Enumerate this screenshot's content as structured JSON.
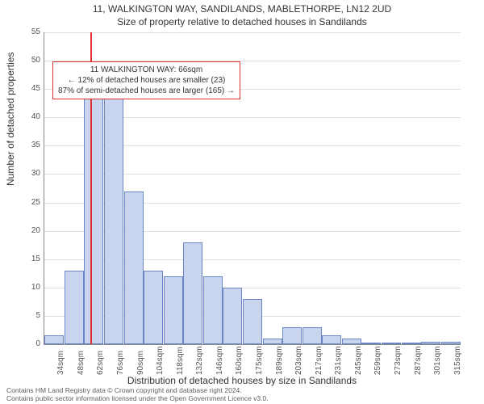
{
  "title_line1": "11, WALKINGTON WAY, SANDILANDS, MABLETHORPE, LN12 2UD",
  "title_line2": "Size of property relative to detached houses in Sandilands",
  "ylabel": "Number of detached properties",
  "xlabel": "Distribution of detached houses by size in Sandilands",
  "annotation": {
    "line1": "11 WALKINGTON WAY: 66sqm",
    "line2": "← 12% of detached houses are smaller (23)",
    "line3": "87% of semi-detached houses are larger (165) →",
    "border_color": "#e03030",
    "border_width": 1
  },
  "chart": {
    "type": "histogram",
    "ylim": [
      0,
      55
    ],
    "ytick_step": 5,
    "ylabel_fontsize": 12,
    "bar_fill": "#c9d5ee",
    "bar_stroke": "#6a85c4",
    "bar_stroke_width": 1,
    "gridline_color": "#e0e0e0",
    "axis_color": "#888888",
    "marker_color": "#e03030",
    "marker_x_index": 2.3,
    "background_color": "#ffffff",
    "categories": [
      "34sqm",
      "48sqm",
      "62sqm",
      "76sqm",
      "90sqm",
      "104sqm",
      "118sqm",
      "132sqm",
      "146sqm",
      "160sqm",
      "175sqm",
      "189sqm",
      "203sqm",
      "217sqm",
      "231sqm",
      "245sqm",
      "259sqm",
      "273sqm",
      "287sqm",
      "301sqm",
      "315sqm"
    ],
    "values": [
      1.5,
      13,
      44,
      48,
      27,
      13,
      12,
      18,
      12,
      10,
      8,
      1,
      3,
      3,
      1.5,
      1,
      0,
      0,
      0,
      0.5,
      0.5
    ]
  },
  "footer": {
    "line1": "Contains HM Land Registry data © Crown copyright and database right 2024.",
    "line2": "Contains public sector information licensed under the Open Government Licence v3.0."
  }
}
